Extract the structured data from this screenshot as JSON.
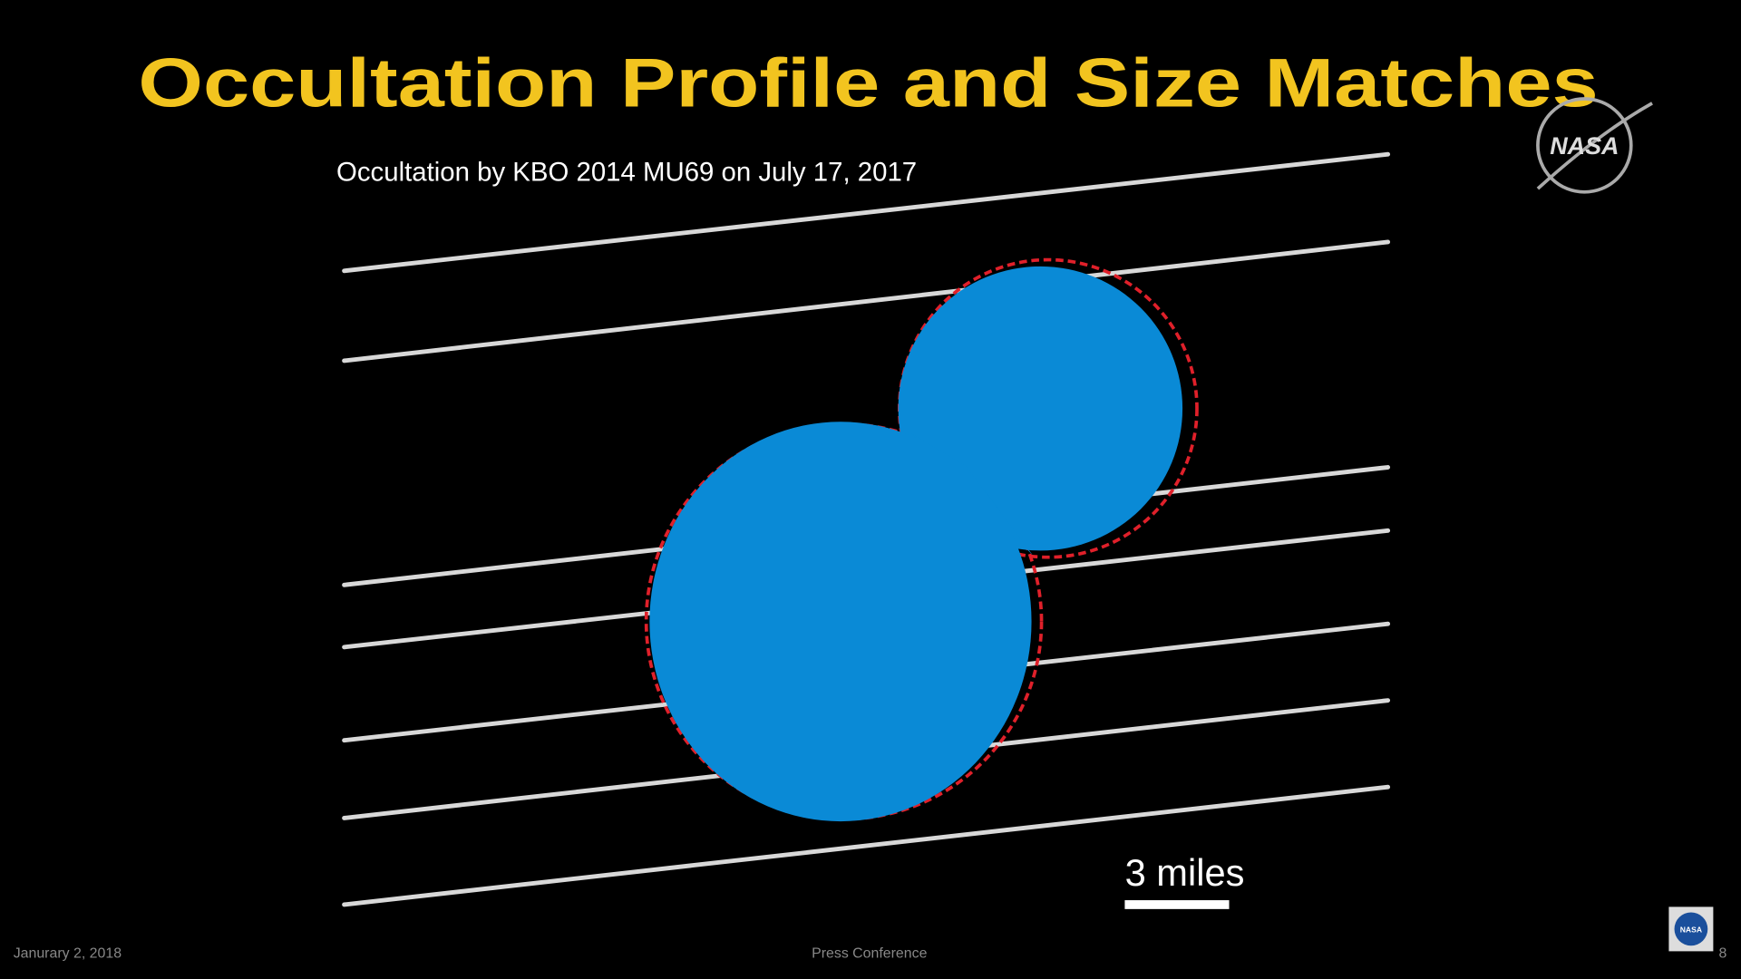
{
  "slide": {
    "title": "Occultation Profile and Size Matches",
    "subtitle": "Occultation by KBO 2014 MU69 on July 17, 2017",
    "scale_label": "3 miles",
    "logo": "NASA",
    "footer": {
      "date": "Janurary 2, 2018",
      "event": "Press Conference",
      "page": "8"
    }
  }
}
